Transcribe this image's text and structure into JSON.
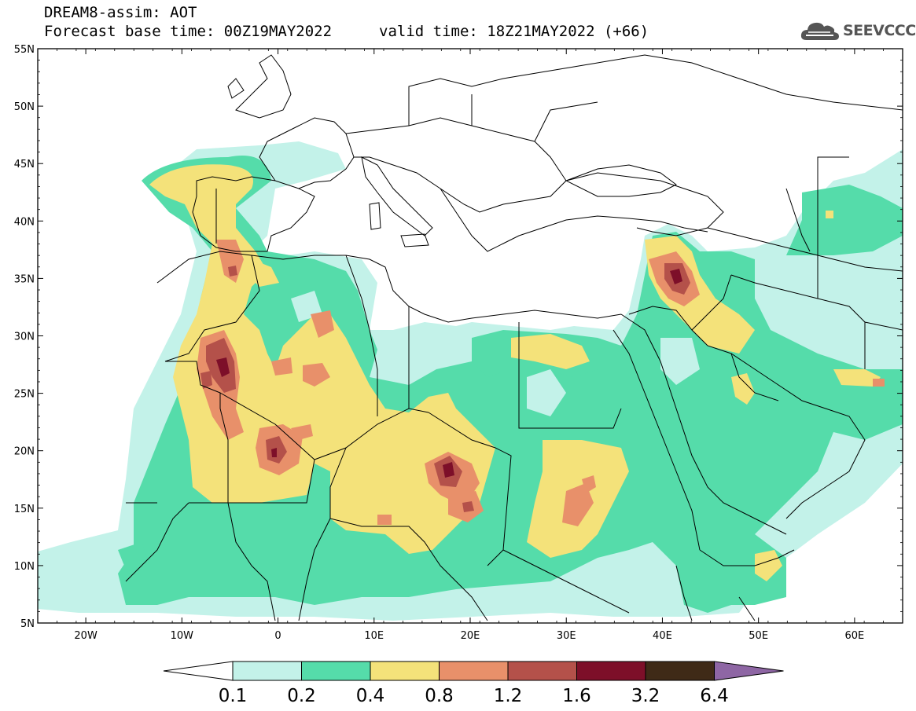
{
  "header": {
    "title": "DREAM8-assim: AOT",
    "base_time": "Forecast base time: 00Z19MAY2022",
    "valid_time": "valid time: 18Z21MAY2022 (+66)"
  },
  "logo": {
    "text": "SEEVCCC",
    "icon": "cloud-icon"
  },
  "map": {
    "lon_range": [
      -25,
      65
    ],
    "lat_range": [
      5,
      55
    ],
    "lat_ticks": [
      "55N",
      "50N",
      "45N",
      "40N",
      "35N",
      "30N",
      "25N",
      "20N",
      "15N",
      "10N",
      "5N"
    ],
    "lat_values": [
      55,
      50,
      45,
      40,
      35,
      30,
      25,
      20,
      15,
      10,
      5
    ],
    "lon_ticks": [
      "20W",
      "10W",
      "0",
      "10E",
      "20E",
      "30E",
      "40E",
      "50E",
      "60E"
    ],
    "lon_values": [
      -20,
      -10,
      0,
      10,
      20,
      30,
      40,
      50,
      60
    ]
  },
  "colorbar": {
    "labels": [
      "0.1",
      "0.2",
      "0.4",
      "0.8",
      "1.2",
      "1.6",
      "3.2",
      "6.4"
    ],
    "colors": [
      "#ffffff",
      "#c3f2e9",
      "#55dcaa",
      "#f4e27a",
      "#e8906a",
      "#b4514a",
      "#7d0f29",
      "#3f2a17",
      "#8e66a4"
    ]
  }
}
